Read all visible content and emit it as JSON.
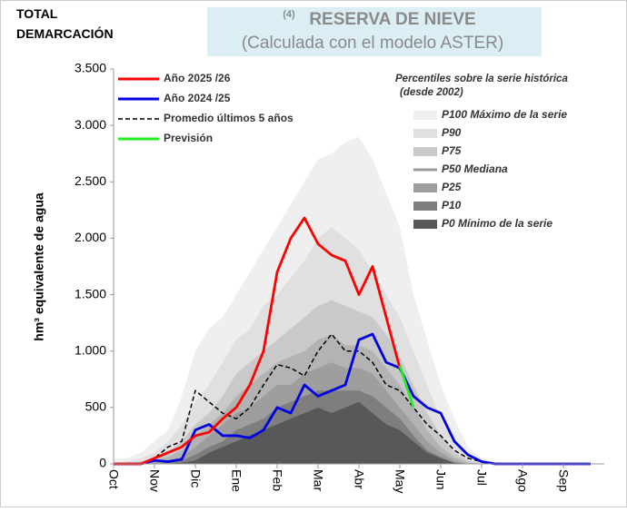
{
  "chart_data": {
    "type": "area",
    "region_label": "TOTAL\nDEMARCACIÓN",
    "title_note": "(4)",
    "title": "RESERVA DE NIEVE",
    "subtitle": "(Calculada con el modelo ASTER)",
    "y_label": "hm³ equivalente de agua",
    "legend_note": [
      "Percentiles sobre la serie histórica",
      "(desde 2002)"
    ],
    "categories": [
      "Oct",
      null,
      null,
      "Nov",
      null,
      null,
      "Dic",
      null,
      null,
      "Ene",
      null,
      null,
      "Feb",
      null,
      null,
      "Mar",
      null,
      null,
      "Abr",
      null,
      null,
      "May",
      null,
      null,
      "Jun",
      null,
      null,
      "Jul",
      null,
      null,
      "Ago",
      null,
      null,
      "Sep",
      null,
      null
    ],
    "ylim": [
      0,
      3500
    ],
    "yticks": [
      0,
      500,
      {
        "value": 1000,
        "label": "1.000"
      },
      {
        "value": 1500,
        "label": "1.500"
      },
      {
        "value": 2000,
        "label": "2.000"
      },
      {
        "value": 2500,
        "label": "2.500"
      },
      {
        "value": 3000,
        "label": "3.000"
      },
      {
        "value": 3500,
        "label": "3.500"
      }
    ],
    "series": [
      {
        "name": "P100 Máximo de la serie",
        "style": "area",
        "legend": "bands",
        "color": "#efefef",
        "values": [
          50,
          50,
          100,
          200,
          300,
          600,
          1000,
          1200,
          1300,
          1500,
          1700,
          1900,
          2100,
          2300,
          2500,
          2700,
          2750,
          2850,
          2900,
          2700,
          2400,
          2100,
          1500,
          1100,
          700,
          400,
          150,
          50,
          20,
          10,
          0,
          0,
          0,
          0,
          0,
          0
        ]
      },
      {
        "name": "P90",
        "style": "area",
        "legend": "bands",
        "color": "#e0e0e0",
        "values": [
          0,
          20,
          50,
          100,
          200,
          350,
          550,
          700,
          900,
          1100,
          1200,
          1400,
          1500,
          1650,
          1800,
          2000,
          2100,
          2000,
          1900,
          1700,
          1500,
          1300,
          1000,
          700,
          400,
          200,
          80,
          20,
          0,
          0,
          0,
          0,
          0,
          0,
          0,
          0
        ]
      },
      {
        "name": "P75",
        "style": "area",
        "legend": "bands",
        "color": "#c9c9c9",
        "values": [
          0,
          0,
          20,
          50,
          100,
          200,
          350,
          450,
          600,
          800,
          900,
          1000,
          1100,
          1200,
          1300,
          1400,
          1450,
          1400,
          1350,
          1300,
          1150,
          950,
          700,
          450,
          250,
          100,
          30,
          0,
          0,
          0,
          0,
          0,
          0,
          0,
          0,
          0
        ]
      },
      {
        "name": "P50 Mediana",
        "style": "band-line",
        "legend": "bands",
        "color": "#b3b3b3",
        "values": [
          0,
          0,
          0,
          30,
          60,
          120,
          250,
          350,
          450,
          600,
          700,
          800,
          900,
          950,
          1000,
          1100,
          1150,
          1050,
          1050,
          1000,
          850,
          700,
          500,
          300,
          150,
          60,
          10,
          0,
          0,
          0,
          0,
          0,
          0,
          0,
          0,
          0
        ]
      },
      {
        "name": "P25",
        "style": "area",
        "legend": "bands",
        "color": "#9e9e9e",
        "values": [
          0,
          0,
          0,
          10,
          30,
          60,
          150,
          250,
          350,
          450,
          500,
          600,
          700,
          700,
          800,
          850,
          900,
          850,
          850,
          800,
          650,
          500,
          350,
          200,
          100,
          30,
          0,
          0,
          0,
          0,
          0,
          0,
          0,
          0,
          0,
          0
        ]
      },
      {
        "name": "P10",
        "style": "area",
        "legend": "bands",
        "color": "#7e7e7e",
        "values": [
          0,
          0,
          0,
          0,
          10,
          30,
          80,
          150,
          200,
          300,
          350,
          400,
          500,
          550,
          600,
          650,
          650,
          650,
          650,
          600,
          500,
          400,
          250,
          120,
          60,
          10,
          0,
          0,
          0,
          0,
          0,
          0,
          0,
          0,
          0,
          0
        ]
      },
      {
        "name": "P0 Mínimo de la serie",
        "style": "area",
        "legend": "bands",
        "color": "#585858",
        "values": [
          0,
          0,
          0,
          0,
          0,
          10,
          30,
          100,
          150,
          200,
          250,
          300,
          350,
          400,
          450,
          500,
          450,
          500,
          550,
          450,
          350,
          300,
          200,
          100,
          50,
          10,
          0,
          0,
          0,
          0,
          0,
          0,
          0,
          0,
          0,
          0
        ]
      },
      {
        "name": "Promedio últimos 5 años",
        "style": "dashed",
        "legend": "lines",
        "color": "#000000",
        "values": [
          0,
          0,
          0,
          50,
          150,
          200,
          650,
          550,
          450,
          400,
          500,
          700,
          880,
          850,
          780,
          1000,
          1150,
          1000,
          1000,
          900,
          700,
          650,
          500,
          350,
          250,
          120,
          50,
          20,
          0,
          0,
          0,
          0,
          0,
          0,
          0,
          0
        ]
      },
      {
        "name": "Año 2024 /25",
        "style": "line",
        "legend": "lines",
        "color": "#0000e0",
        "values": [
          0,
          0,
          0,
          30,
          20,
          40,
          300,
          350,
          250,
          250,
          230,
          300,
          500,
          450,
          700,
          600,
          650,
          700,
          1100,
          1150,
          900,
          850,
          600,
          500,
          450,
          200,
          80,
          20,
          0,
          0,
          0,
          0,
          0,
          0,
          0,
          0
        ]
      },
      {
        "name": "Año 2025 /26",
        "style": "line",
        "legend": "lines",
        "color": "#ff0000",
        "values": [
          0,
          0,
          0,
          50,
          100,
          150,
          250,
          280,
          400,
          500,
          700,
          1000,
          1700,
          2000,
          2180,
          1950,
          1850,
          1800,
          1500,
          1750,
          1300,
          850,
          null,
          null,
          null,
          null,
          null,
          null,
          null,
          null,
          null,
          null,
          null,
          null,
          null,
          null
        ]
      },
      {
        "name": "Previsión",
        "style": "line",
        "legend": "lines",
        "color": "#22ee22",
        "values": [
          null,
          null,
          null,
          null,
          null,
          null,
          null,
          null,
          null,
          null,
          null,
          null,
          null,
          null,
          null,
          null,
          null,
          null,
          null,
          null,
          null,
          870,
          500,
          null,
          null,
          null,
          null,
          null,
          null,
          null,
          null,
          null,
          null,
          null,
          null,
          null
        ]
      }
    ]
  }
}
